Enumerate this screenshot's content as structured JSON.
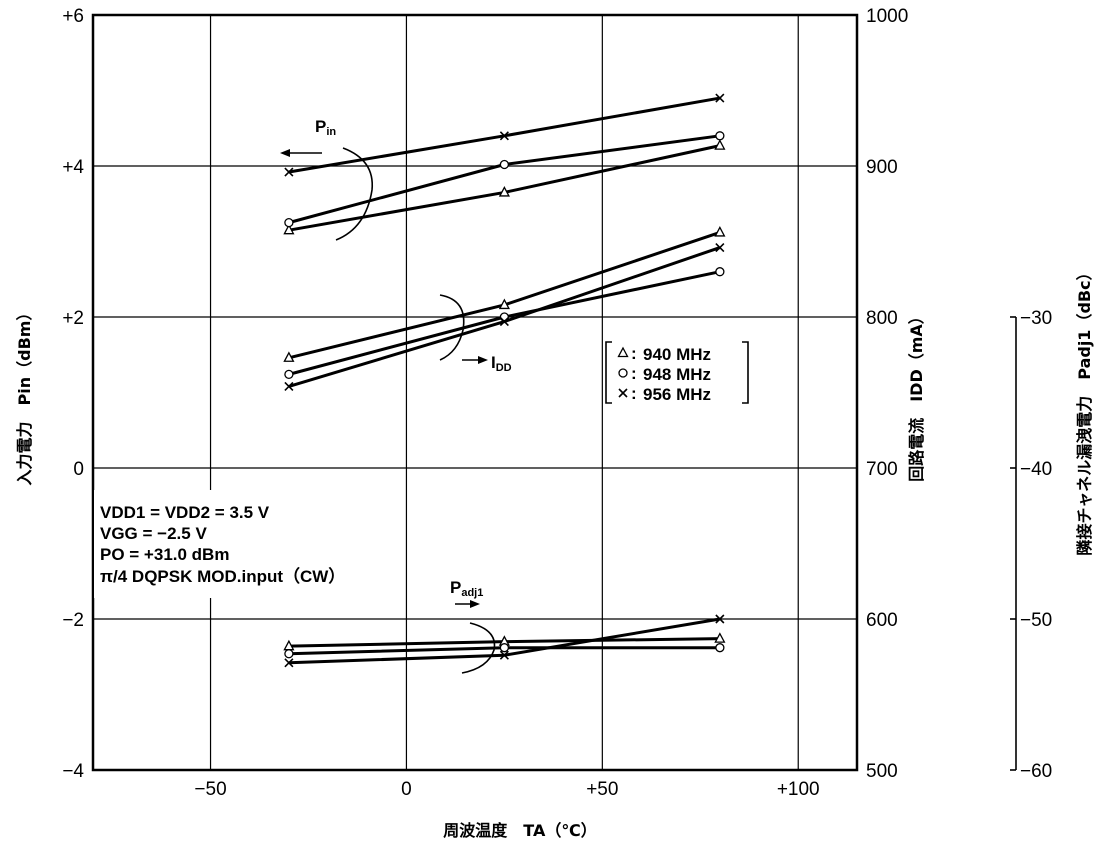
{
  "chart_data": {
    "type": "line",
    "x": [
      -30,
      25,
      80
    ],
    "xlim": [
      -80,
      115
    ],
    "xticks": [
      "−50",
      "0",
      "+50",
      "+100"
    ],
    "xlabel": "周波温度　TA（℃）",
    "left_axis": {
      "label_main": "入力電力　Pin（dBm）",
      "ylim": [
        -4,
        6
      ],
      "ticks": [
        "+6",
        "+4",
        "+2",
        "0",
        "−2",
        "−4"
      ]
    },
    "middle_axis": {
      "label_main": "回路電流　IDD（mA）",
      "ylim": [
        500,
        1000
      ],
      "ticks": [
        "1000",
        "900",
        "800",
        "700",
        "600",
        "500"
      ]
    },
    "right_axis": {
      "label_main": "隣接チャネル漏洩電力　Padj1（dBc）",
      "ylim": [
        -60,
        -30
      ],
      "ticks": [
        "−30",
        "−40",
        "−50",
        "−60"
      ]
    },
    "grid": true,
    "legend": {
      "placement": "center-right",
      "entries": [
        {
          "marker": "triangle",
          "text": "940 MHz"
        },
        {
          "marker": "circle",
          "text": "948 MHz"
        },
        {
          "marker": "cross",
          "text": "956 MHz"
        }
      ]
    },
    "series_groups": [
      {
        "group": "Pin",
        "label": "Pin",
        "axis": "left",
        "series": [
          {
            "freq": "940 MHz",
            "marker": "triangle",
            "values": [
              3.15,
              3.65,
              4.27
            ]
          },
          {
            "freq": "948 MHz",
            "marker": "circle",
            "values": [
              3.25,
              4.02,
              4.4
            ]
          },
          {
            "freq": "956 MHz",
            "marker": "cross",
            "values": [
              3.92,
              4.4,
              4.9
            ]
          }
        ]
      },
      {
        "group": "IDD",
        "label": "IDD",
        "axis": "middle",
        "series": [
          {
            "freq": "940 MHz",
            "marker": "triangle",
            "values": [
              773,
              808,
              856
            ]
          },
          {
            "freq": "948 MHz",
            "marker": "circle",
            "values": [
              762,
              800,
              830
            ]
          },
          {
            "freq": "956 MHz",
            "marker": "cross",
            "values": [
              754,
              797,
              846
            ]
          }
        ]
      },
      {
        "group": "Padj1",
        "label": "Padj1",
        "axis": "right",
        "series": [
          {
            "freq": "940 MHz",
            "marker": "triangle",
            "values": [
              -51.8,
              -51.5,
              -51.3
            ]
          },
          {
            "freq": "948 MHz",
            "marker": "circle",
            "values": [
              -52.3,
              -51.9,
              -51.9
            ]
          },
          {
            "freq": "956 MHz",
            "marker": "cross",
            "values": [
              -52.9,
              -52.4,
              -50
            ]
          }
        ]
      }
    ],
    "conditions": [
      "VDD1 = VDD2 = 3.5 V",
      "VGG = −2.5 V",
      "PO = +31.0 dBm",
      "π/4 DQPSK MOD.input（CW）"
    ]
  }
}
